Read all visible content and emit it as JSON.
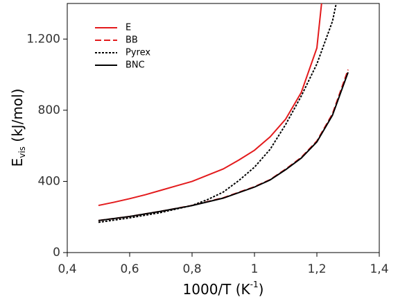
{
  "chart_data": {
    "type": "line",
    "xlabel": {
      "main": "1000/T (K",
      "sup": "-1",
      "end": ")"
    },
    "ylabel": {
      "main": "E",
      "sub": "vis",
      "end": " (kJ/mol)"
    },
    "xlim": [
      0.4,
      1.4
    ],
    "xticks": [
      {
        "value": 0.4,
        "label": "0,4"
      },
      {
        "value": 0.6,
        "label": "0,6"
      },
      {
        "value": 0.8,
        "label": "0,8"
      },
      1,
      {
        "value": 1.2,
        "label": "1,2"
      },
      {
        "value": 1.4,
        "label": "1,4"
      }
    ],
    "ylim": [
      0,
      1400
    ],
    "yticks": [
      0,
      400,
      800,
      {
        "value": 1200,
        "label": "1.200"
      }
    ],
    "legend": "upper-left",
    "series": [
      {
        "name": "E",
        "color": "#e31a1c",
        "dash": "solid",
        "x": [
          0.5,
          0.55,
          0.6,
          0.65,
          0.7,
          0.75,
          0.8,
          0.85,
          0.9,
          0.95,
          1.0,
          1.05,
          1.1,
          1.15,
          1.2,
          1.215
        ],
        "values": [
          265,
          283,
          303,
          325,
          350,
          375,
          400,
          435,
          470,
          520,
          575,
          650,
          750,
          900,
          1150,
          1400
        ]
      },
      {
        "name": "BB",
        "color": "#e31a1c",
        "dash": "dashed",
        "x": [
          0.5,
          0.6,
          0.7,
          0.8,
          0.9,
          1.0,
          1.05,
          1.1,
          1.15,
          1.2,
          1.25,
          1.3
        ],
        "values": [
          180,
          203,
          232,
          265,
          308,
          370,
          410,
          469,
          535,
          627,
          780,
          1028
        ]
      },
      {
        "name": "Pyrex",
        "color": "#000000",
        "dash": "dotted",
        "x": [
          0.5,
          0.6,
          0.7,
          0.8,
          0.85,
          0.9,
          0.95,
          1.0,
          1.05,
          1.1,
          1.15,
          1.2,
          1.25,
          1.262
        ],
        "values": [
          170,
          195,
          225,
          265,
          298,
          340,
          405,
          480,
          580,
          720,
          880,
          1060,
          1300,
          1400
        ]
      },
      {
        "name": "BNC",
        "color": "#000000",
        "dash": "solid",
        "x": [
          0.5,
          0.6,
          0.7,
          0.8,
          0.9,
          1.0,
          1.05,
          1.1,
          1.15,
          1.2,
          1.25,
          1.3
        ],
        "values": [
          180,
          203,
          232,
          264,
          306,
          368,
          408,
          466,
          531,
          622,
          772,
          1013
        ]
      }
    ]
  }
}
